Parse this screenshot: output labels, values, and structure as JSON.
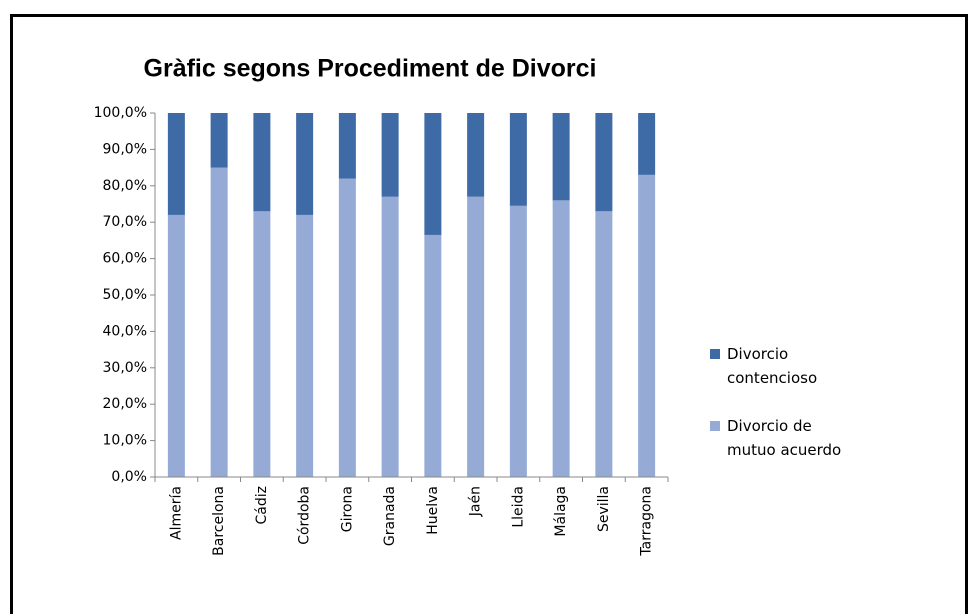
{
  "chart_data": {
    "type": "stacked_bar",
    "title": "Gràfic segons Procediment de Divorci",
    "categories": [
      "Almería",
      "Barcelona",
      "Cádiz",
      "Córdoba",
      "Girona",
      "Granada",
      "Huelva",
      "Jaén",
      "Lleida",
      "Málaga",
      "Sevilla",
      "Tarragona"
    ],
    "series": [
      {
        "name": "Divorcio de mutuo acuerdo",
        "color": "#95abd6",
        "values": [
          72,
          85,
          73,
          72,
          82,
          77,
          66.5,
          77,
          74.5,
          76,
          73,
          83
        ]
      },
      {
        "name": "Divorcio contencioso",
        "color": "#3e6aa6",
        "values": [
          28,
          15,
          27,
          28,
          18,
          23,
          33.5,
          23,
          25.5,
          24,
          27,
          17
        ]
      }
    ],
    "ylim": [
      0,
      100
    ],
    "yticks": [
      {
        "value": 0,
        "label": "0,0%"
      },
      {
        "value": 10,
        "label": "10,0%"
      },
      {
        "value": 20,
        "label": "20,0%"
      },
      {
        "value": 30,
        "label": "30,0%"
      },
      {
        "value": 40,
        "label": "40,0%"
      },
      {
        "value": 50,
        "label": "50,0%"
      },
      {
        "value": 60,
        "label": "60,0%"
      },
      {
        "value": 70,
        "label": "70,0%"
      },
      {
        "value": 80,
        "label": "80,0%"
      },
      {
        "value": 90,
        "label": "90,0%"
      },
      {
        "value": 100,
        "label": "100,0%"
      }
    ],
    "grid": false,
    "legend": "right"
  }
}
